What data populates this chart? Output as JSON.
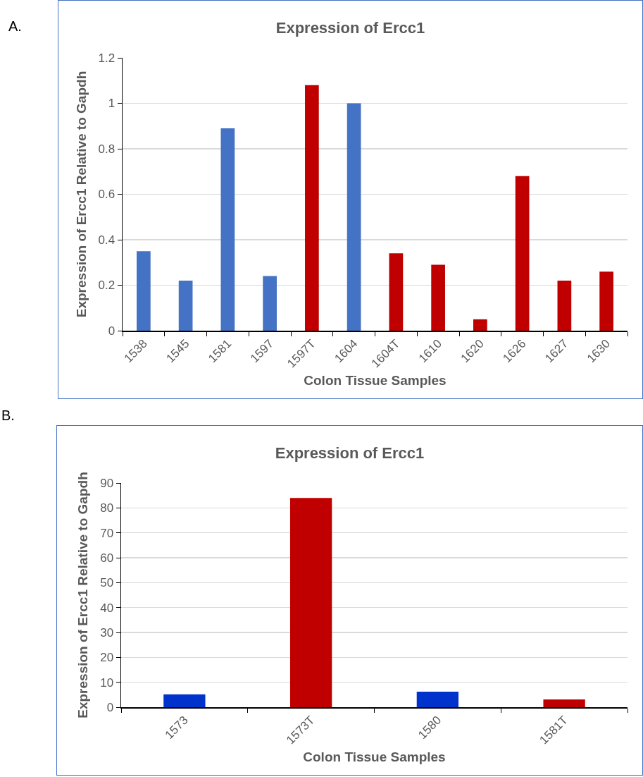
{
  "chart_data": [
    {
      "type": "bar",
      "title": "Expression of Ercc1",
      "xlabel": "Colon Tissue Samples",
      "ylabel": "Expression of Ercc1 Relative to Gapdh",
      "annotations": [
        "A."
      ],
      "categories": [
        "1538",
        "1545",
        "1581",
        "1597",
        "1597T",
        "1604",
        "1604T",
        "1610",
        "1620",
        "1626",
        "1627",
        "1630"
      ],
      "values": [
        0.35,
        0.22,
        0.89,
        0.24,
        1.08,
        1.0,
        0.34,
        0.29,
        0.05,
        0.68,
        0.22,
        0.26
      ],
      "colors": [
        "#4472c4",
        "#4472c4",
        "#4472c4",
        "#4472c4",
        "#c00000",
        "#4472c4",
        "#c00000",
        "#c00000",
        "#c00000",
        "#c00000",
        "#c00000",
        "#c00000"
      ],
      "ylim": [
        0,
        1.2
      ],
      "yticks": [
        0,
        0.2,
        0.4,
        0.6,
        0.8,
        1,
        1.2
      ],
      "grid": "y"
    },
    {
      "type": "bar",
      "title": "Expression of Ercc1",
      "xlabel": "Colon Tissue Samples",
      "ylabel": "Expression of Ercc1 Relative to Gapdh",
      "annotations": [
        "B."
      ],
      "categories": [
        "1573",
        "1573T",
        "1580",
        "1581T"
      ],
      "values": [
        5.2,
        84,
        6.2,
        3.1
      ],
      "colors": [
        "#0033cc",
        "#c00000",
        "#0033cc",
        "#c00000"
      ],
      "ylim": [
        0,
        90
      ],
      "yticks": [
        0,
        10,
        20,
        30,
        40,
        50,
        60,
        70,
        80,
        90
      ],
      "grid": "y"
    }
  ]
}
